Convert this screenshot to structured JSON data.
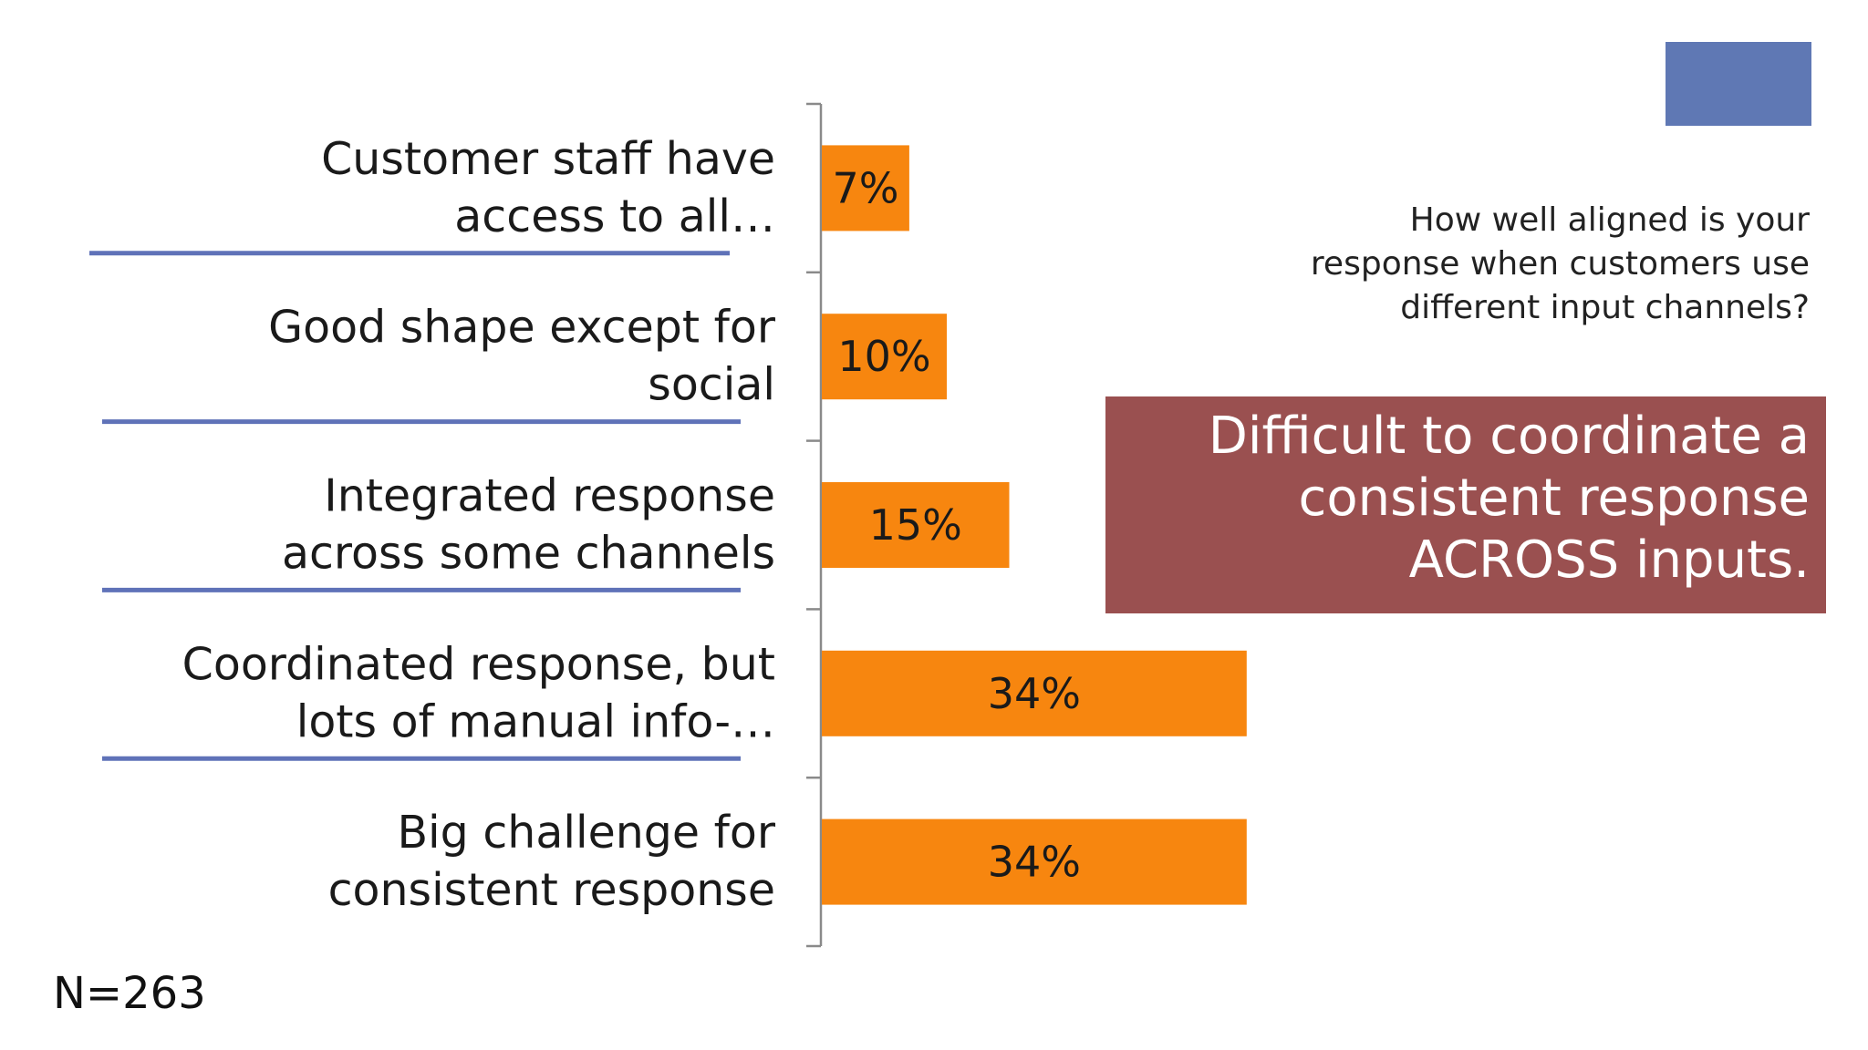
{
  "slide": {
    "question": "How well aligned is your\nresponse when customers use\ndifferent input channels?",
    "callout": "Difficult to coordinate a\nconsistent response\nACROSS inputs.",
    "sample_size": "N=263",
    "colors": {
      "bar": "#f7860f",
      "separator": "#5f72b8",
      "callout_bg": "#9a5050",
      "corner_block": "#5f78b4"
    }
  },
  "chart_data": {
    "type": "bar",
    "orientation": "horizontal",
    "categories": [
      [
        "Customer staff have",
        "access to all…"
      ],
      [
        "Good shape except for",
        "social"
      ],
      [
        "Integrated response",
        "across some channels"
      ],
      [
        "Coordinated response, but",
        "lots of manual info-…"
      ],
      [
        "Big challenge for",
        "consistent response"
      ]
    ],
    "values": [
      7,
      10,
      15,
      34,
      34
    ],
    "value_labels": [
      "7%",
      "10%",
      "15%",
      "34%",
      "34%"
    ],
    "xlim": [
      0,
      100
    ],
    "grid": false,
    "legend": "none"
  }
}
